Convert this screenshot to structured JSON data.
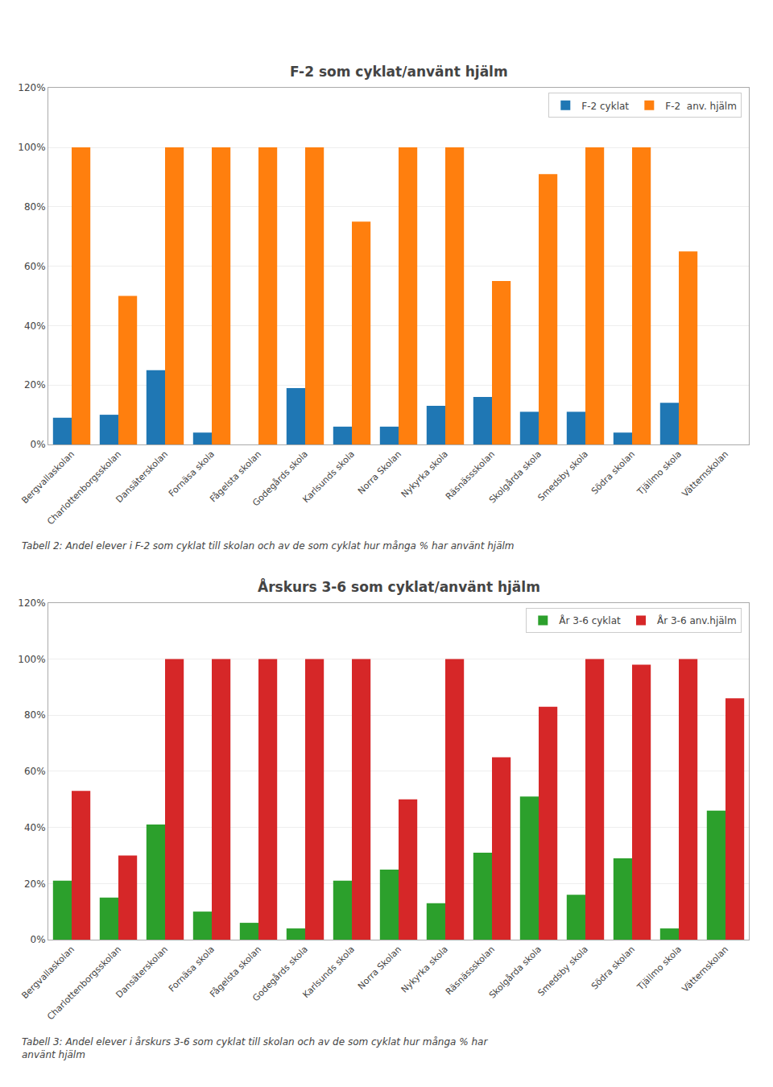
{
  "chart_data": [
    {
      "type": "bar",
      "title": "F-2 som cyklat/använt hjälm",
      "categories": [
        "Bergvallaskolan",
        "Charlottenborgsskolan",
        "Dansäterskolan",
        "Fornäsa skola",
        "Fågelsta skolan",
        "Godegårds skola",
        "Karlsunds skola",
        "Norra Skolan",
        "Nykyrka skola",
        "Räsnässskolan",
        "Skolgårda skola",
        "Smedsby skola",
        "Södra skolan",
        "Tjällmo skola",
        "Vätternskolan"
      ],
      "series": [
        {
          "name": "F-2 cyklat",
          "values": [
            9,
            10,
            25,
            4,
            0,
            19,
            6,
            6,
            13,
            16,
            11,
            11,
            4,
            14,
            0
          ]
        },
        {
          "name": "F-2  anv. hjälm",
          "values": [
            100,
            50,
            100,
            100,
            100,
            100,
            75,
            100,
            100,
            55,
            91,
            100,
            100,
            65,
            0
          ]
        }
      ],
      "ylim": [
        0,
        120
      ],
      "yticks": [
        {
          "value": 0,
          "label": "0%"
        },
        {
          "value": 20,
          "label": "20%"
        },
        {
          "value": 40,
          "label": "40%"
        },
        {
          "value": 60,
          "label": "60%"
        },
        {
          "value": 80,
          "label": "80%"
        },
        {
          "value": 100,
          "label": "100%"
        },
        {
          "value": 120,
          "label": "120%"
        }
      ],
      "grid": true,
      "legend": "upper right",
      "caption": "Tabell 2: Andel elever i F-2 som cyklat till skolan och av de som cyklat hur många % har använt hjälm"
    },
    {
      "type": "bar",
      "title": "Årskurs 3-6 som cyklat/använt hjälm",
      "categories": [
        "Bergvallaskolan",
        "Charlottenborgsskolan",
        "Dansäterskolan",
        "Fornäsa skola",
        "Fågelsta skolan",
        "Godegårds skola",
        "Karlsunds skola",
        "Norra Skolan",
        "Nykyrka skola",
        "Räsnässskolan",
        "Skolgårda skola",
        "Smedsby skola",
        "Södra skolan",
        "Tjällmo skola",
        "Vätternskolan"
      ],
      "series": [
        {
          "name": "År 3-6 cyklat",
          "values": [
            21,
            15,
            41,
            10,
            6,
            4,
            21,
            25,
            13,
            31,
            51,
            16,
            29,
            4,
            46
          ]
        },
        {
          "name": "År 3-6 anv.hjälm",
          "values": [
            53,
            30,
            100,
            100,
            100,
            100,
            100,
            50,
            100,
            65,
            83,
            100,
            98,
            100,
            86
          ]
        }
      ],
      "ylim": [
        0,
        120
      ],
      "yticks": [
        {
          "value": 0,
          "label": "0%"
        },
        {
          "value": 20,
          "label": "20%"
        },
        {
          "value": 40,
          "label": "40%"
        },
        {
          "value": 60,
          "label": "60%"
        },
        {
          "value": 80,
          "label": "80%"
        },
        {
          "value": 100,
          "label": "100%"
        },
        {
          "value": 120,
          "label": "120%"
        }
      ],
      "grid": true,
      "legend": "upper right",
      "caption": "Tabell 3: Andel elever i årskurs 3-6 som cyklat till skolan och av de som cyklat hur många % har\nanvänt hjälm"
    }
  ]
}
